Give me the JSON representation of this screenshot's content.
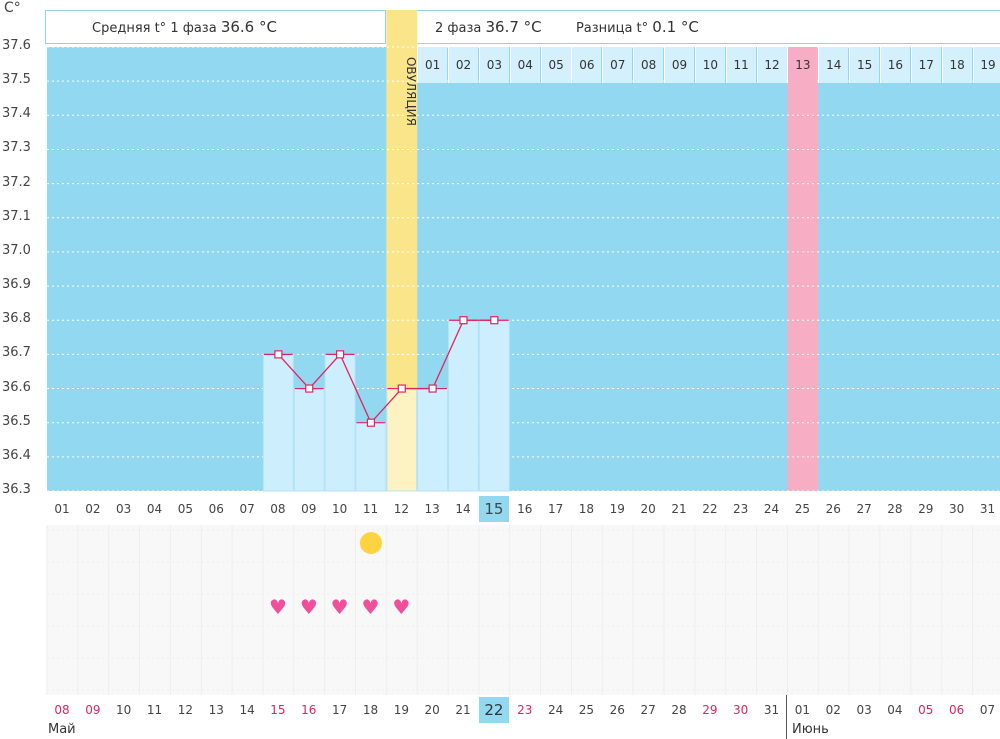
{
  "chart_data": {
    "type": "line",
    "unit": "C°",
    "ylim": [
      36.3,
      37.6
    ],
    "y_ticks": [
      "37.6",
      "37.5",
      "37.4",
      "37.3",
      "37.2",
      "37.1",
      "37.0",
      "36.9",
      "36.8",
      "36.7",
      "36.6",
      "36.5",
      "36.4",
      "36.3"
    ],
    "cycle_days": [
      "01",
      "02",
      "03",
      "04",
      "05",
      "06",
      "07",
      "08",
      "09",
      "10",
      "11",
      "12",
      "13",
      "14",
      "15",
      "16",
      "17",
      "18",
      "19",
      "20",
      "21",
      "22",
      "23",
      "24",
      "25",
      "26",
      "27",
      "28",
      "29",
      "30",
      "31"
    ],
    "highlighted_day": "15",
    "temperatures": [
      {
        "day": "08",
        "value": 36.7
      },
      {
        "day": "09",
        "value": 36.6
      },
      {
        "day": "10",
        "value": 36.7
      },
      {
        "day": "11",
        "value": 36.5
      },
      {
        "day": "12",
        "value": 36.6
      },
      {
        "day": "13",
        "value": 36.6
      },
      {
        "day": "14",
        "value": 36.8
      },
      {
        "day": "15",
        "value": 36.8
      }
    ],
    "ovulation_day": "12",
    "ovulation_label": "ОВУЛЯЦИЯ",
    "marked_day": "25",
    "phase2_days": [
      "01",
      "02",
      "03",
      "04",
      "05",
      "06",
      "07",
      "08",
      "09",
      "10",
      "11",
      "12",
      "13",
      "14",
      "15",
      "16",
      "17",
      "18",
      "19"
    ],
    "phase2_marked": "13",
    "dates": [
      {
        "d": "08",
        "red": true
      },
      {
        "d": "09",
        "red": true
      },
      {
        "d": "10",
        "red": false
      },
      {
        "d": "11",
        "red": false
      },
      {
        "d": "12",
        "red": false
      },
      {
        "d": "13",
        "red": false
      },
      {
        "d": "14",
        "red": false
      },
      {
        "d": "15",
        "red": true
      },
      {
        "d": "16",
        "red": true
      },
      {
        "d": "17",
        "red": false
      },
      {
        "d": "18",
        "red": false
      },
      {
        "d": "19",
        "red": false
      },
      {
        "d": "20",
        "red": false
      },
      {
        "d": "21",
        "red": false
      },
      {
        "d": "22",
        "red": false
      },
      {
        "d": "23",
        "red": true
      },
      {
        "d": "24",
        "red": false
      },
      {
        "d": "25",
        "red": false
      },
      {
        "d": "26",
        "red": false
      },
      {
        "d": "27",
        "red": false
      },
      {
        "d": "28",
        "red": false
      },
      {
        "d": "29",
        "red": true
      },
      {
        "d": "30",
        "red": true
      },
      {
        "d": "31",
        "red": false
      },
      {
        "d": "01",
        "red": false
      },
      {
        "d": "02",
        "red": false
      },
      {
        "d": "03",
        "red": false
      },
      {
        "d": "04",
        "red": false
      },
      {
        "d": "05",
        "red": true
      },
      {
        "d": "06",
        "red": true
      },
      {
        "d": "07",
        "red": false
      }
    ],
    "highlighted_date": "22",
    "months": [
      "Май",
      "Июнь"
    ],
    "ovulation_marker_day": "11",
    "heart_days": [
      "08",
      "09",
      "10",
      "11",
      "12"
    ]
  },
  "header": {
    "phase1_label": "Средняя t° 1 фаза",
    "phase1_value": "36.6 °C",
    "phase2_label": "2 фаза",
    "phase2_value": "36.7 °C",
    "diff_label": "Разница t°",
    "diff_value": "0.1 °C"
  },
  "colors": {
    "plot_bg": "#93d8f1",
    "bar_fill": "#cdeefc",
    "line": "#e0245e",
    "ovulation": "#fbe58a",
    "marked": "#f7aec4",
    "sun": "#ffd23f",
    "heart": "#f0509a"
  }
}
